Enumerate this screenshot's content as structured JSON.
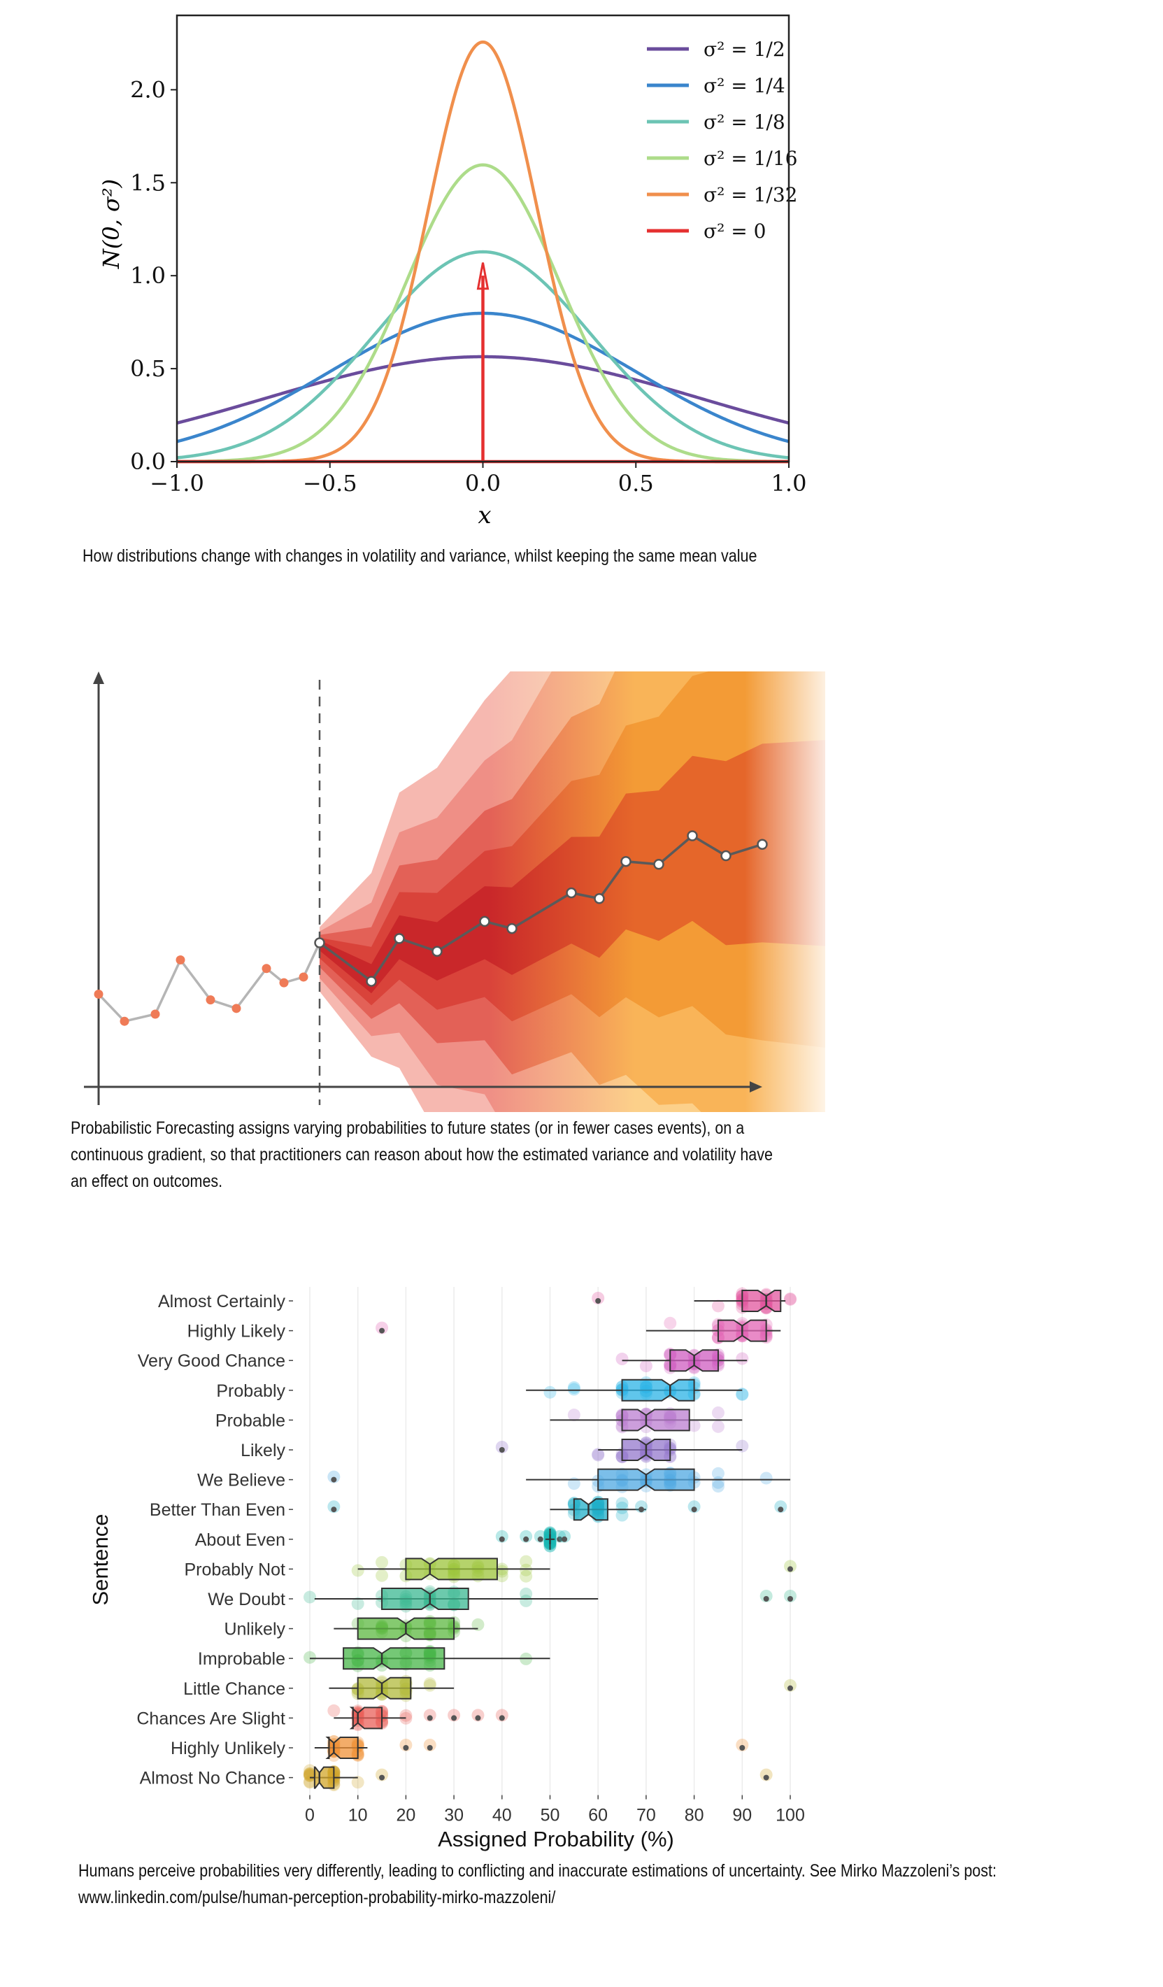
{
  "charts": {
    "normal": {
      "caption": "How distributions change with changes in volatility and variance, whilst keeping the same mean value",
      "chart_data": {
        "type": "line",
        "xlabel": "x",
        "ylabel": "N(0, σ²)",
        "xlim": [
          -1.0,
          1.0
        ],
        "ylim": [
          0.0,
          2.4
        ],
        "xticks": [
          "−1.0",
          "−0.5",
          "0.0",
          "0.5",
          "1.0"
        ],
        "yticks": [
          "0.0",
          "0.5",
          "1.0",
          "1.5",
          "2.0"
        ],
        "legend_position": "top-right",
        "series": [
          {
            "name": "σ² = 1/2",
            "variance": 0.5,
            "color": "#6a4c9c"
          },
          {
            "name": "σ² = 1/4",
            "variance": 0.25,
            "color": "#3a85cc"
          },
          {
            "name": "σ² = 1/8",
            "variance": 0.125,
            "color": "#6cc4b4"
          },
          {
            "name": "σ² = 1/16",
            "variance": 0.0625,
            "color": "#addc8a"
          },
          {
            "name": "σ² = 1/32",
            "variance": 0.03125,
            "color": "#f08f4c"
          },
          {
            "name": "σ² = 0",
            "variance": 0,
            "color": "#e53030"
          }
        ]
      }
    },
    "forecast": {
      "caption": "Probabilistic Forecasting assigns varying probabilities to future states (or in fewer cases events), on a continuous gradient, so that practitioners can reason about how the estimated variance and volatility have an effect on outcomes.",
      "chart_data": {
        "type": "line",
        "history": [
          -3.6,
          -5.5,
          -5.0,
          -1.2,
          -4.0,
          -4.6,
          -1.8,
          -2.8,
          -2.4,
          0.0
        ],
        "forecast": [
          0.0,
          -2.7,
          0.3,
          -0.6,
          1.5,
          1.0,
          3.5,
          3.1,
          5.7,
          5.5,
          7.5,
          6.1,
          6.9
        ],
        "colors": {
          "history_line": "#b5b5b5",
          "history_point": "#ef7b57",
          "forecast_line": "#5a5a5a",
          "divider": "#555555"
        }
      }
    },
    "probability": {
      "caption_line1": "Humans perceive probabilities very differently, leading to conflicting and inaccurate estimations of uncertainty. See Mirko Mazzoleni’s post:",
      "caption_line2": "www.linkedin.com/pulse/human-perception-probability-mirko-mazzoleni/",
      "chart_data": {
        "type": "boxplot",
        "xlabel": "Assigned Probability (%)",
        "ylabel": "Sentence",
        "xlim": [
          0,
          100
        ],
        "xticks": [
          "0",
          "10",
          "20",
          "30",
          "40",
          "50",
          "60",
          "70",
          "80",
          "90",
          "100"
        ],
        "categories": [
          {
            "name": "Almost Certainly",
            "whisker": [
              80,
              99
            ],
            "q1": 90,
            "median": 95,
            "q3": 98,
            "color": "#e2559e",
            "outliers": [
              60
            ]
          },
          {
            "name": "Highly Likely",
            "whisker": [
              70,
              98
            ],
            "q1": 85,
            "median": 90,
            "q3": 95,
            "color": "#e264b4",
            "outliers": [
              15
            ]
          },
          {
            "name": "Very Good Chance",
            "whisker": [
              65,
              91
            ],
            "q1": 75,
            "median": 80,
            "q3": 85,
            "color": "#cf5cc0",
            "outliers": []
          },
          {
            "name": "Probably",
            "whisker": [
              45,
              90
            ],
            "q1": 65,
            "median": 75,
            "q3": 80,
            "color": "#2bb3e6",
            "outliers": []
          },
          {
            "name": "Probable",
            "whisker": [
              50,
              90
            ],
            "q1": 65,
            "median": 70,
            "q3": 79,
            "color": "#bb7ed0",
            "outliers": []
          },
          {
            "name": "Likely",
            "whisker": [
              60,
              90
            ],
            "q1": 65,
            "median": 70,
            "q3": 75,
            "color": "#9478cc",
            "outliers": [
              40
            ]
          },
          {
            "name": "We Believe",
            "whisker": [
              45,
              100
            ],
            "q1": 60,
            "median": 70,
            "q3": 80,
            "color": "#4fa8e2",
            "outliers": [
              5
            ]
          },
          {
            "name": "Better Than Even",
            "whisker": [
              50,
              70
            ],
            "q1": 55,
            "median": 58,
            "q3": 62,
            "color": "#21afc8",
            "outliers": [
              5,
              69,
              80,
              98
            ]
          },
          {
            "name": "About Even",
            "whisker": [
              49,
              51
            ],
            "q1": 50,
            "median": 50,
            "q3": 50,
            "color": "#18b6b3",
            "outliers": [
              40,
              45,
              48,
              52,
              53
            ]
          },
          {
            "name": "Probably Not",
            "whisker": [
              10,
              50
            ],
            "q1": 20,
            "median": 25,
            "q3": 39,
            "color": "#9cc43a",
            "outliers": [
              100
            ]
          },
          {
            "name": "We Doubt",
            "whisker": [
              1,
              60
            ],
            "q1": 15,
            "median": 25,
            "q3": 33,
            "color": "#3bb891",
            "outliers": [
              95,
              100
            ]
          },
          {
            "name": "Unlikely",
            "whisker": [
              5,
              35
            ],
            "q1": 10,
            "median": 20,
            "q3": 30,
            "color": "#5cb840",
            "outliers": []
          },
          {
            "name": "Improbable",
            "whisker": [
              0,
              50
            ],
            "q1": 7,
            "median": 15,
            "q3": 28,
            "color": "#47b548",
            "outliers": []
          },
          {
            "name": "Little Chance",
            "whisker": [
              4,
              30
            ],
            "q1": 10,
            "median": 15,
            "q3": 21,
            "color": "#b2b93c",
            "outliers": [
              100
            ]
          },
          {
            "name": "Chances Are Slight",
            "whisker": [
              5,
              20
            ],
            "q1": 9,
            "median": 10,
            "q3": 15,
            "color": "#e9605a",
            "outliers": [
              25,
              30,
              35,
              40
            ]
          },
          {
            "name": "Highly Unlikely",
            "whisker": [
              1,
              12
            ],
            "q1": 4,
            "median": 5,
            "q3": 10,
            "color": "#ef9238",
            "outliers": [
              20,
              25,
              90
            ]
          },
          {
            "name": "Almost No Chance",
            "whisker": [
              0,
              10
            ],
            "q1": 1,
            "median": 2,
            "q3": 5,
            "color": "#d1a52a",
            "outliers": [
              15,
              95
            ]
          }
        ]
      }
    }
  }
}
